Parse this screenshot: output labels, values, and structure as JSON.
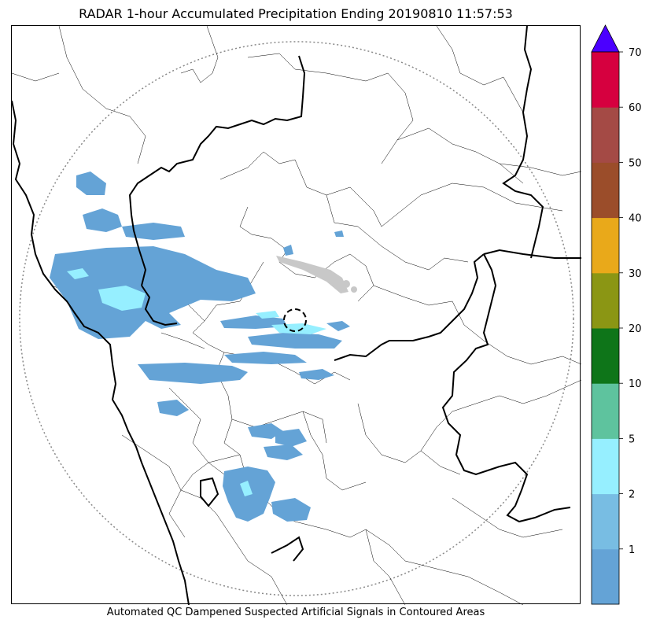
{
  "title": "RADAR 1-hour Accumulated Precipitation Ending 20190810 11:57:53",
  "caption": "Automated QC Dampened Suspected Artificial Signals in Contoured Areas",
  "colorbar": {
    "ticks": [
      "1",
      "2",
      "5",
      "10",
      "20",
      "30",
      "40",
      "50",
      "60",
      "70"
    ],
    "bins": [
      {
        "color": "#64a3d6"
      },
      {
        "color": "#78bde3"
      },
      {
        "color": "#96efff"
      },
      {
        "color": "#5ec39e"
      },
      {
        "color": "#0e7519"
      },
      {
        "color": "#8b9614"
      },
      {
        "color": "#e9a91a"
      },
      {
        "color": "#9b4d2a"
      },
      {
        "color": "#a44a45"
      },
      {
        "color": "#d6003f"
      }
    ],
    "extend_color": "#4b00ff"
  },
  "map": {
    "range_ring_color": "#888888",
    "light_rain_color": "#64a3d6",
    "moderate_rain_color": "#96efff",
    "artifact_color": "#c8c8c8"
  }
}
